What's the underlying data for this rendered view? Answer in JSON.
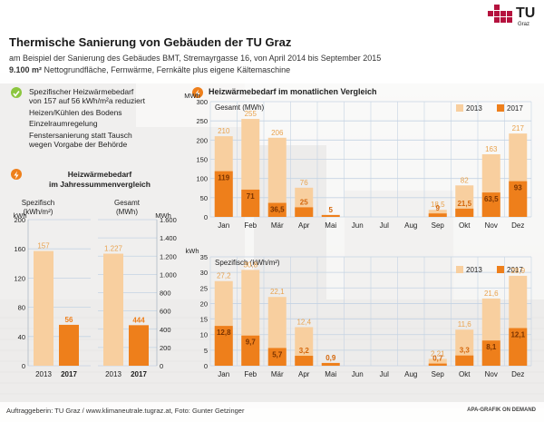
{
  "logo": {
    "text": "TU",
    "subtext": "Graz"
  },
  "title": "Thermische Sanierung von Gebäuden der TU Graz",
  "subtitle1": "am Beispiel der Sanierung des Gebäudes BMT, Stremayrgasse 16, von April 2014 bis September 2015",
  "subtitle2_bold": "9.100 m²",
  "subtitle2_rest": " Nettogrundfläche, Fernwärme, Fernkälte plus eigene Kältemaschine",
  "bullets": {
    "check_line1": "Spezifischer Heizwärmebedarf",
    "check_line2": "von 157 auf 56 kWh/m²a reduziert",
    "item2": "Heizen/Kühlen des Bodens",
    "item3": "Einzelraumregelung",
    "item4_line1": "Fenstersanierung statt Tausch",
    "item4_line2": "wegen Vorgabe der Behörde"
  },
  "footer_left": "Auftraggeberin: TU Graz / www.klimaneutrale.tugraz.at, Foto: Gunter Getzinger",
  "footer_right": "APA-GRAFIK ON DEMAND",
  "colors": {
    "y2013": "#f8cf9f",
    "y2017": "#ee7f1b",
    "accent": "#ee7f1b",
    "check": "#8cc63f",
    "logo": "#b5123e",
    "grid": "#c4d3e3"
  },
  "chart_data": [
    {
      "type": "bar",
      "title": "Heizwärmebedarf im Jahressummenvergleich",
      "panels": [
        {
          "label_line1": "Spezifisch",
          "label_line2": "(kWh/m²)",
          "unit": "kWh",
          "ylim": [
            0,
            200
          ],
          "ticks": [
            "0",
            "40",
            "80",
            "120",
            "160",
            "200"
          ],
          "categories": [
            "2013",
            "2017"
          ],
          "values": [
            157,
            56
          ],
          "value_labels": [
            "157",
            "56"
          ]
        },
        {
          "label_line1": "Gesamt",
          "label_line2": "(MWh)",
          "unit": "MWh",
          "ylim": [
            0,
            1600
          ],
          "ticks": [
            "0",
            "200",
            "400",
            "600",
            "800",
            "1.000",
            "1.200",
            "1.400",
            "1.600"
          ],
          "categories": [
            "2013",
            "2017"
          ],
          "values": [
            1227,
            444
          ],
          "value_labels": [
            "1.227",
            "444"
          ]
        }
      ]
    },
    {
      "type": "bar",
      "title": "Heizwärmebedarf im monatlichen Vergleich",
      "subtitle": "Gesamt (MWh)",
      "unit": "MWh",
      "ylim": [
        0,
        300
      ],
      "ticks": [
        "0",
        "50",
        "100",
        "150",
        "200",
        "250",
        "300"
      ],
      "categories": [
        "Jan",
        "Feb",
        "Mär",
        "Apr",
        "Mai",
        "Jun",
        "Jul",
        "Aug",
        "Sep",
        "Okt",
        "Nov",
        "Dez"
      ],
      "series": [
        {
          "name": "2013",
          "values": [
            210,
            255,
            206,
            76,
            null,
            null,
            null,
            null,
            18.5,
            82,
            163,
            217
          ],
          "labels": [
            "210",
            "255",
            "206",
            "76",
            "",
            "",
            "",
            "",
            "18,5",
            "82",
            "163",
            "217"
          ]
        },
        {
          "name": "2017",
          "values": [
            119,
            71,
            36.5,
            25,
            5,
            null,
            null,
            null,
            9,
            21.5,
            63.5,
            93
          ],
          "labels": [
            "119",
            "71",
            "36,5",
            "25",
            "5",
            "",
            "",
            "",
            "9",
            "21,5",
            "63,5",
            "93"
          ]
        }
      ],
      "legend": "top-right"
    },
    {
      "type": "bar",
      "subtitle": "Spezifisch (kWh/m²)",
      "unit": "kWh",
      "ylim": [
        0,
        35
      ],
      "ticks": [
        "0",
        "5",
        "10",
        "15",
        "20",
        "25",
        "30",
        "35"
      ],
      "categories": [
        "Jan",
        "Feb",
        "Mär",
        "Apr",
        "Mai",
        "Jun",
        "Jul",
        "Aug",
        "Sep",
        "Okt",
        "Nov",
        "Dez"
      ],
      "series": [
        {
          "name": "2013",
          "values": [
            27.2,
            30.8,
            22.1,
            12.4,
            null,
            null,
            null,
            null,
            2.21,
            11.6,
            21.6,
            28.9
          ],
          "labels": [
            "27,2",
            "30,8",
            "22,1",
            "12,4",
            "",
            "",
            "",
            "",
            "2,21",
            "11,6",
            "21,6",
            "28,9"
          ]
        },
        {
          "name": "2017",
          "values": [
            12.8,
            9.7,
            5.7,
            3.2,
            0.9,
            null,
            null,
            null,
            0.7,
            3.3,
            8.1,
            12.1
          ],
          "labels": [
            "12,8",
            "9,7",
            "5,7",
            "3,2",
            "0,9",
            "",
            "",
            "",
            "0,7",
            "3,3",
            "8,1",
            "12,1"
          ]
        }
      ],
      "legend": "top-right"
    }
  ]
}
